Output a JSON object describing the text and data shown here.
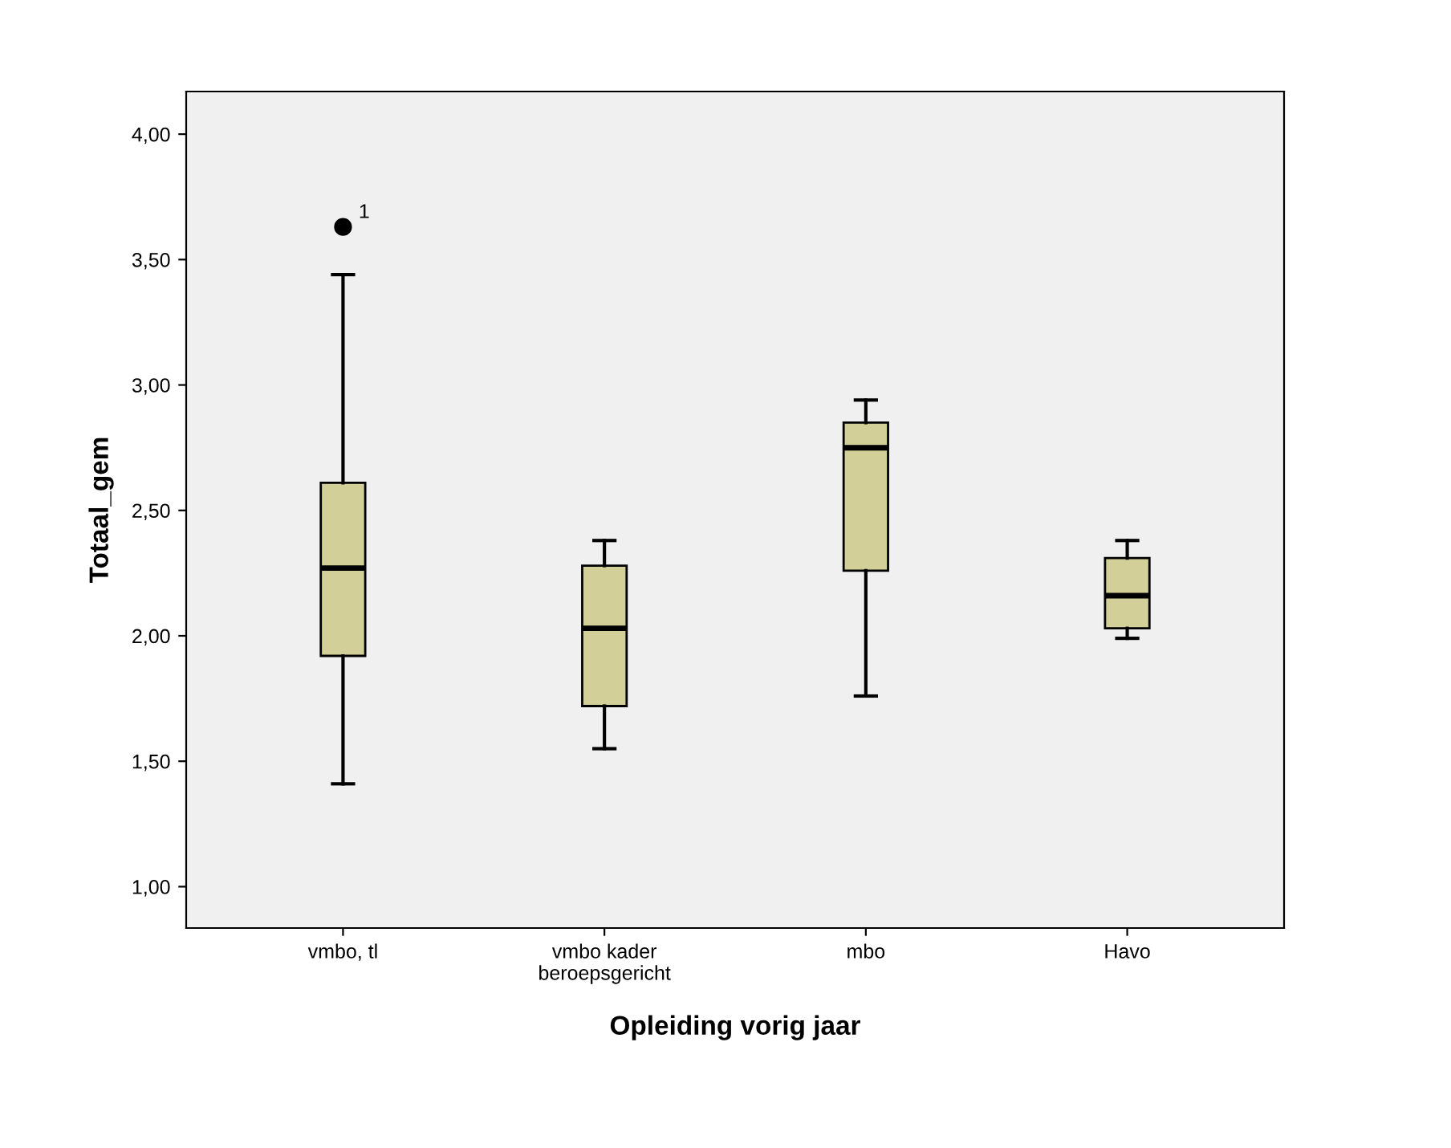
{
  "chart_data": {
    "type": "box",
    "xlabel": "Opleiding vorig jaar",
    "ylabel": "Totaal_gem",
    "categories": [
      "vmbo, tl",
      "vmbo kader\nberoepsgericht",
      "mbo",
      "Havo"
    ],
    "color": "#d3cf98",
    "boxes": [
      {
        "low": 1.41,
        "q1": 1.92,
        "median": 2.27,
        "q3": 2.61,
        "high": 3.44,
        "outliers": [
          3.63
        ]
      },
      {
        "low": 1.55,
        "q1": 1.72,
        "median": 2.03,
        "q3": 2.28,
        "high": 2.38
      },
      {
        "low": 1.76,
        "q1": 2.26,
        "median": 2.75,
        "q3": 2.85,
        "high": 2.94
      },
      {
        "low": 1.99,
        "q1": 2.03,
        "median": 2.16,
        "q3": 2.31,
        "high": 2.38
      }
    ],
    "annotations": [
      "1"
    ],
    "ylim": [
      0.835,
      4.17
    ],
    "yticks": [
      {
        "value": 1.0,
        "label": "1,00"
      },
      {
        "value": 1.5,
        "label": "1,50"
      },
      {
        "value": 2.0,
        "label": "2,00"
      },
      {
        "value": 2.5,
        "label": "2,50"
      },
      {
        "value": 3.0,
        "label": "3,00"
      },
      {
        "value": 3.5,
        "label": "3,50"
      },
      {
        "value": 4.0,
        "label": "4,00"
      }
    ],
    "grid": false,
    "legend": false
  }
}
